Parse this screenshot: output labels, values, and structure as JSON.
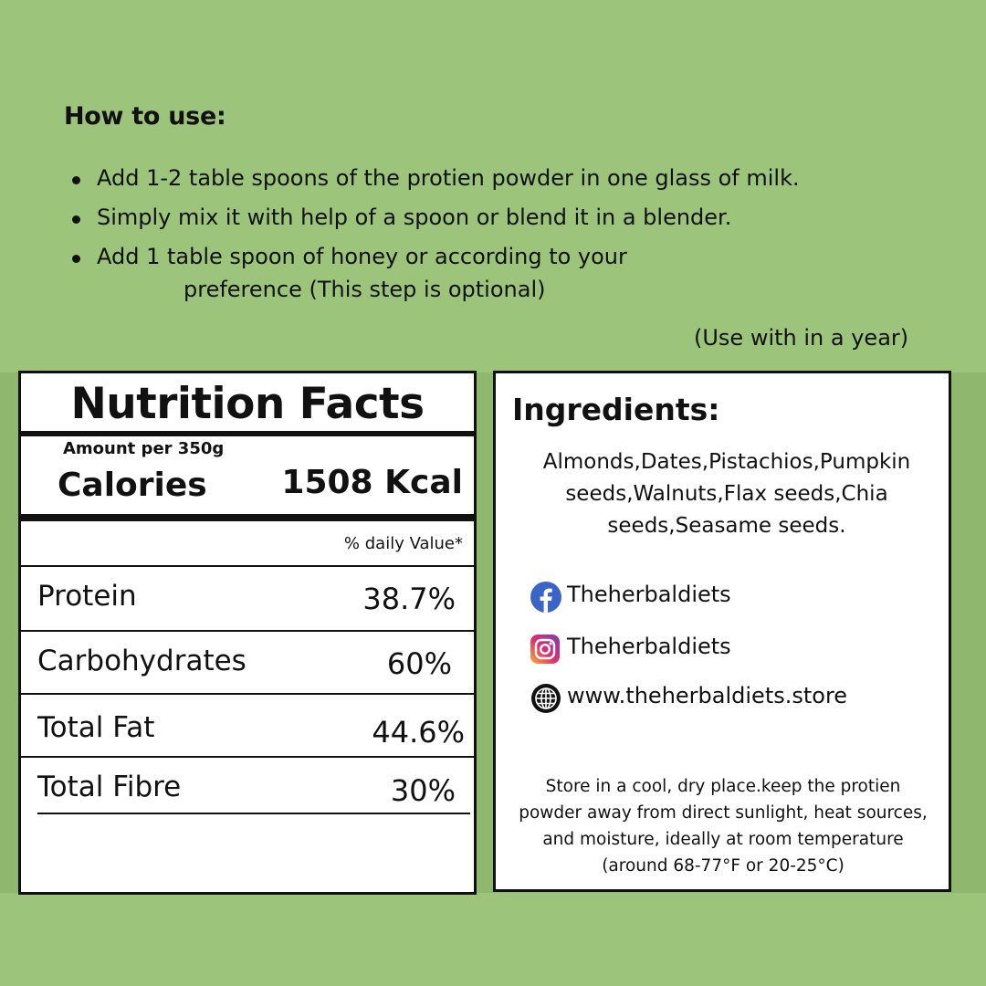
{
  "how_to_use": {
    "title": "How to use:",
    "steps": [
      "Add 1-2 table spoons of the protien powder in one glass of milk.",
      "Simply mix it with help of a spoon or blend it in a blender.",
      "Add 1 table spoon of honey or according to your"
    ],
    "step3_continuation": "preference (This step is optional)",
    "validity": "(Use with in a year)"
  },
  "nutrition": {
    "title": "Nutrition Facts",
    "amount_per": "Amount per 350g",
    "calories_label": "Calories",
    "calories_value": "1508 Kcal",
    "daily_value_header": "% daily Value*",
    "rows": [
      {
        "label": "Protein",
        "value": "38.7%"
      },
      {
        "label": "Carbohydrates",
        "value": "60%"
      },
      {
        "label": "Total Fat",
        "value": "44.6%"
      },
      {
        "label": "Total Fibre",
        "value": "30%"
      }
    ]
  },
  "ingredients": {
    "title": "Ingredients:",
    "text": "Almonds,Dates,Pistachios,Pumpkin seeds,Walnuts,Flax seeds,Chia seeds,Seasame seeds.",
    "social": {
      "facebook": "Theherbaldiets",
      "instagram": "Theherbaldiets",
      "website": "www.theherbaldiets.store"
    },
    "icons": {
      "facebook": "facebook-icon",
      "instagram": "instagram-icon",
      "website": "globe-icon"
    },
    "storage_note": "Store in a cool, dry place.keep the protien powder away from direct sunlight, heat sources, and moisture, ideally at room temperature (around 68-77°F or 20-25°C)"
  },
  "colors": {
    "background": "#9dc47b",
    "band": "#8fb86e",
    "panel": "#ffffff",
    "facebook": "#3b64c8"
  }
}
